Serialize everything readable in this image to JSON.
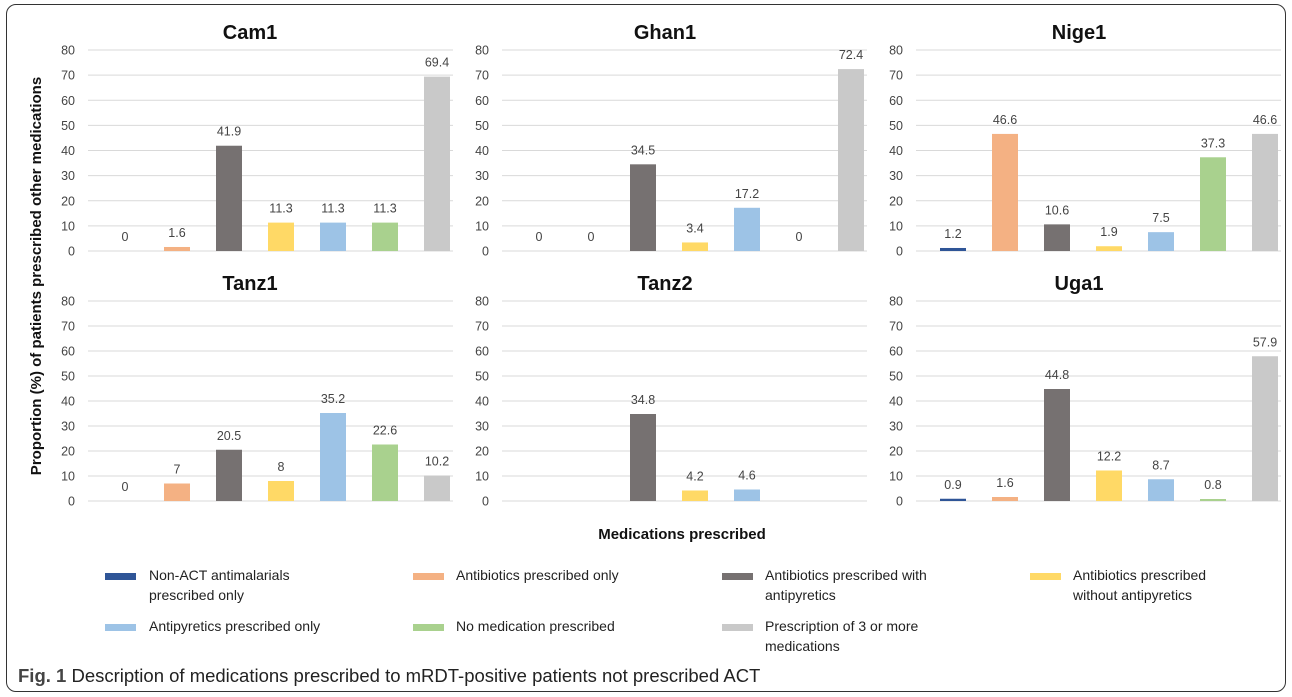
{
  "y_axis_label": "Proportion (%) of patients prescribed other medications",
  "x_axis_label": "Medications prescribed",
  "caption": {
    "label": "Fig. 1",
    "text": " Description of medications prescribed to mRDT-positive patients not prescribed ACT"
  },
  "chart_data": [
    {
      "type": "bar",
      "title": "Cam1",
      "ylim": [
        0,
        80
      ],
      "yticks": [
        0,
        10,
        20,
        30,
        40,
        50,
        60,
        70,
        80
      ],
      "values": [
        0,
        1.6,
        41.9,
        11.3,
        11.3,
        11.3,
        69.4
      ],
      "labels": [
        "0",
        "1.6",
        "41.9",
        "11.3",
        "11.3",
        "11.3",
        "69.4"
      ]
    },
    {
      "type": "bar",
      "title": "Ghan1",
      "ylim": [
        0,
        80
      ],
      "yticks": [
        0,
        10,
        20,
        30,
        40,
        50,
        60,
        70,
        80
      ],
      "values": [
        0,
        0,
        34.5,
        3.4,
        17.2,
        0,
        72.4
      ],
      "labels": [
        "0",
        "0",
        "34.5",
        "3.4",
        "17.2",
        "0",
        "72.4"
      ]
    },
    {
      "type": "bar",
      "title": "Nige1",
      "ylim": [
        0,
        80
      ],
      "yticks": [
        0,
        10,
        20,
        30,
        40,
        50,
        60,
        70,
        80
      ],
      "values": [
        1.2,
        46.6,
        10.6,
        1.9,
        7.5,
        37.3,
        46.6
      ],
      "labels": [
        "1.2",
        "46.6",
        "10.6",
        "1.9",
        "7.5",
        "37.3",
        "46.6"
      ]
    },
    {
      "type": "bar",
      "title": "Tanz1",
      "ylim": [
        0,
        80
      ],
      "yticks": [
        0,
        10,
        20,
        30,
        40,
        50,
        60,
        70,
        80
      ],
      "values": [
        0,
        7,
        20.5,
        8,
        35.2,
        22.6,
        10.2
      ],
      "labels": [
        "0",
        "7",
        "20.5",
        "8",
        "35.2",
        "22.6",
        "10.2"
      ]
    },
    {
      "type": "bar",
      "title": "Tanz2",
      "ylim": [
        0,
        80
      ],
      "yticks": [
        0,
        10,
        20,
        30,
        40,
        50,
        60,
        70,
        80
      ],
      "values": [
        null,
        null,
        34.8,
        4.2,
        4.6,
        null,
        null
      ],
      "labels": [
        "",
        "",
        "34.8",
        "4.2",
        "4.6",
        "",
        ""
      ]
    },
    {
      "type": "bar",
      "title": "Uga1",
      "ylim": [
        0,
        80
      ],
      "yticks": [
        0,
        10,
        20,
        30,
        40,
        50,
        60,
        70,
        80
      ],
      "values": [
        0.9,
        1.6,
        44.8,
        12.2,
        8.7,
        0.8,
        57.9
      ],
      "labels": [
        "0.9",
        "1.6",
        "44.8",
        "12.2",
        "8.7",
        "0.8",
        "57.9"
      ]
    }
  ],
  "legend": [
    {
      "lines": [
        "Non-ACT antimalarials",
        "prescribed only"
      ],
      "color": "#2f5597"
    },
    {
      "lines": [
        "Antibiotics prescribed only"
      ],
      "color": "#f4b183"
    },
    {
      "lines": [
        "Antibiotics prescribed with",
        "antipyretics"
      ],
      "color": "#767171"
    },
    {
      "lines": [
        "Antibiotics prescribed",
        "without antipyretics"
      ],
      "color": "#ffd966"
    },
    {
      "lines": [
        "Antipyretics prescribed only"
      ],
      "color": "#9dc3e6"
    },
    {
      "lines": [
        "No medication prescribed"
      ],
      "color": "#a9d18e"
    },
    {
      "lines": [
        "Prescription of 3 or more",
        "medications"
      ],
      "color": "#c9c9c9"
    }
  ]
}
